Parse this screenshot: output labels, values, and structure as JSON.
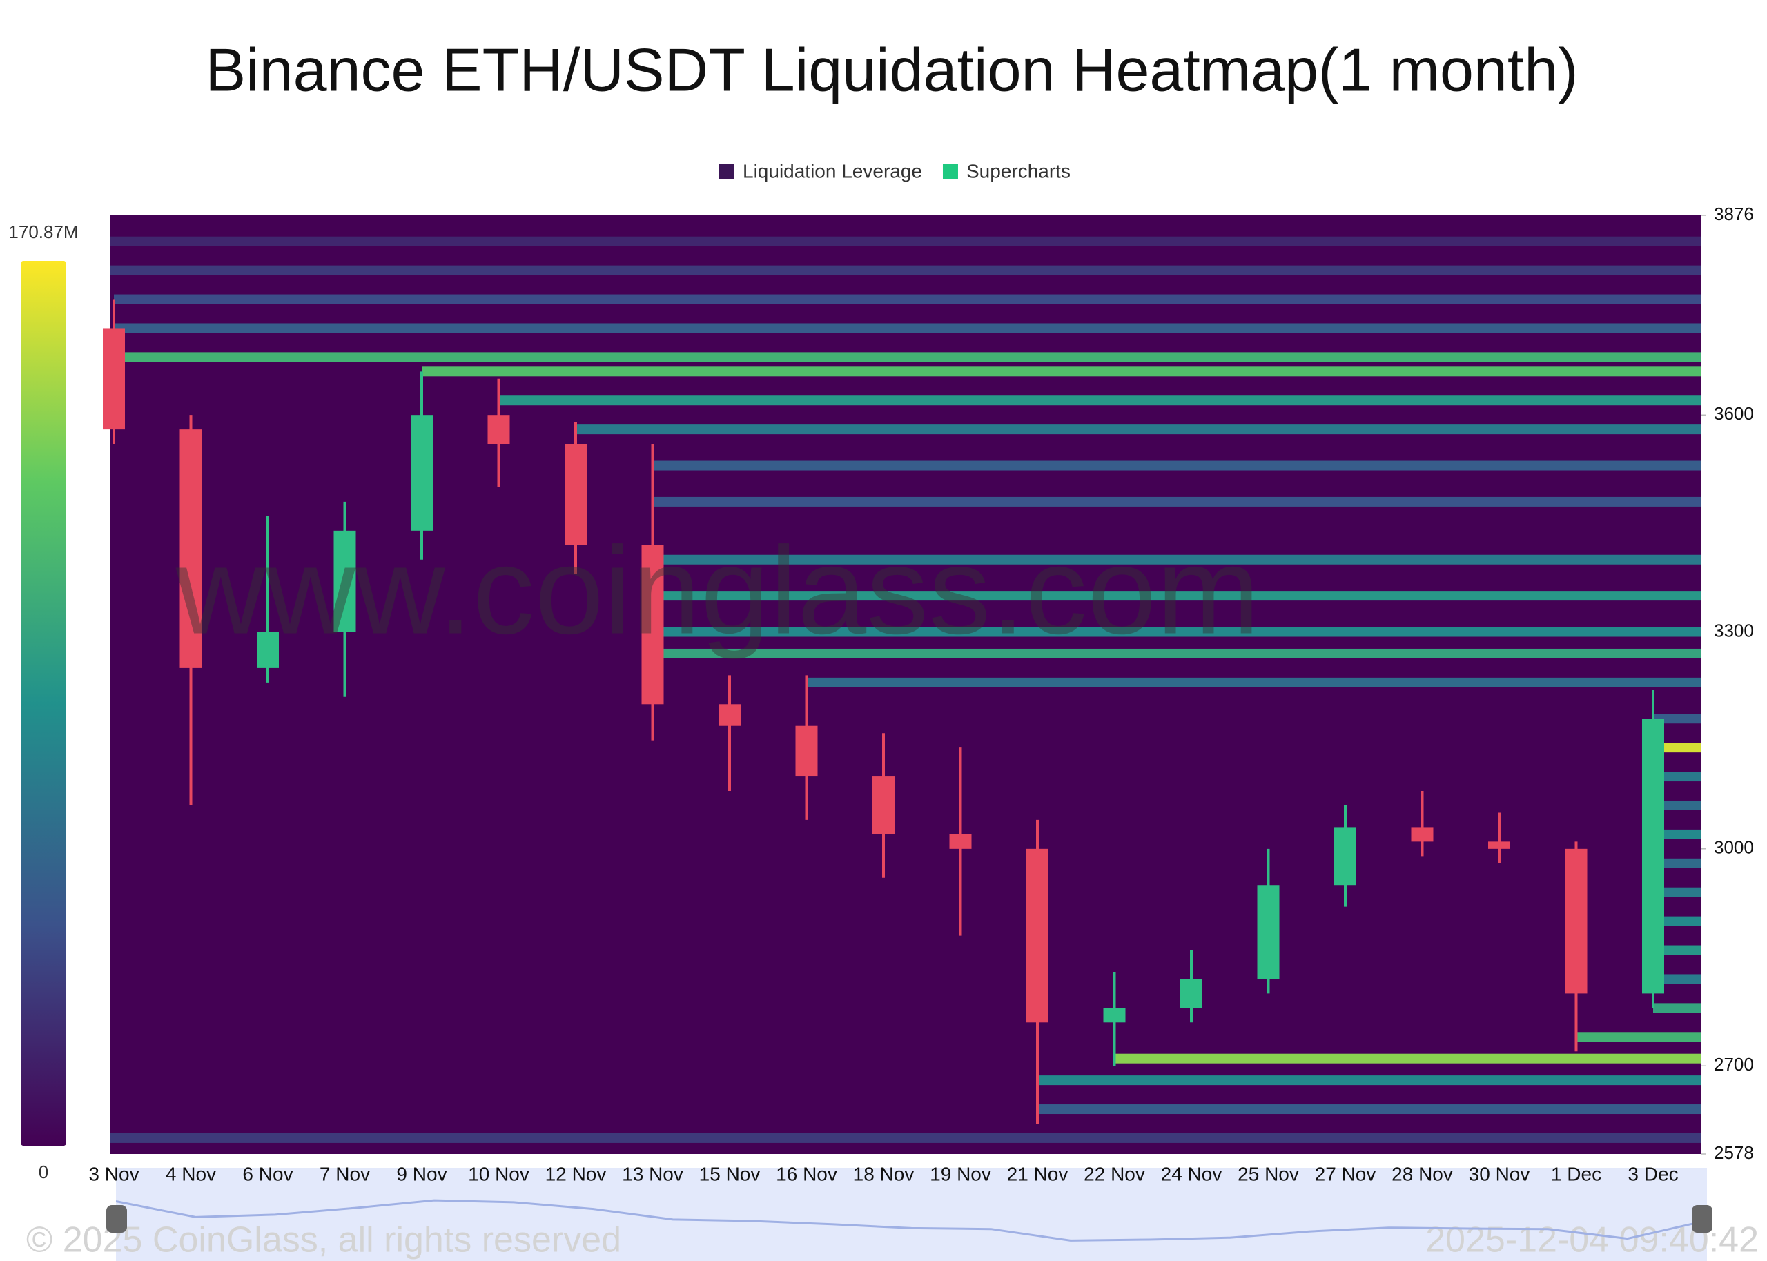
{
  "chart_data": {
    "type": "heatmap",
    "title": "Binance ETH/USDT Liquidation Heatmap(1 month)",
    "legend": [
      {
        "name": "Liquidation Leverage",
        "color": "#3b1556"
      },
      {
        "name": "Supercharts",
        "color": "#1ec980"
      }
    ],
    "watermark": "www.coinglass.com",
    "copyright": "© 2025 CoinGlass, all rights reserved",
    "timestamp": "2025-12-04 09:40:42",
    "categories": [
      "3 Nov",
      "4 Nov",
      "6 Nov",
      "7 Nov",
      "9 Nov",
      "10 Nov",
      "12 Nov",
      "13 Nov",
      "15 Nov",
      "16 Nov",
      "18 Nov",
      "19 Nov",
      "21 Nov",
      "22 Nov",
      "24 Nov",
      "25 Nov",
      "27 Nov",
      "28 Nov",
      "30 Nov",
      "1 Dec",
      "3 Dec"
    ],
    "open": [
      3720,
      3580,
      3250,
      3300,
      3440,
      3600,
      3560,
      3420,
      3200,
      3170,
      3100,
      3020,
      3000,
      2760,
      2780,
      2820,
      2950,
      3030,
      3010,
      3000,
      2800
    ],
    "high": [
      3760,
      3600,
      3460,
      3480,
      3660,
      3650,
      3590,
      3560,
      3240,
      3240,
      3160,
      3140,
      3040,
      2830,
      2860,
      3000,
      3060,
      3080,
      3050,
      3010,
      3220
    ],
    "low": [
      3560,
      3060,
      3230,
      3210,
      3400,
      3500,
      3380,
      3150,
      3080,
      3040,
      2960,
      2880,
      2620,
      2700,
      2760,
      2800,
      2920,
      2990,
      2980,
      2720,
      2780
    ],
    "close": [
      3580,
      3250,
      3300,
      3440,
      3600,
      3560,
      3420,
      3200,
      3170,
      3100,
      3020,
      3000,
      2760,
      2780,
      2820,
      2950,
      3030,
      3010,
      3000,
      2800,
      3180
    ],
    "up_color": "#2fbf86",
    "down_color": "#e8485f",
    "levels": [
      {
        "price": 3840,
        "value": 20
      },
      {
        "price": 3800,
        "value": 30
      },
      {
        "price": 3760,
        "value": 40
      },
      {
        "price": 3720,
        "value": 50
      },
      {
        "price": 3680,
        "value": 110
      },
      {
        "price": 3660,
        "value": 120
      },
      {
        "price": 3620,
        "value": 90
      },
      {
        "price": 3580,
        "value": 70
      },
      {
        "price": 3530,
        "value": 50
      },
      {
        "price": 3480,
        "value": 45
      },
      {
        "price": 3400,
        "value": 70
      },
      {
        "price": 3350,
        "value": 90
      },
      {
        "price": 3300,
        "value": 80
      },
      {
        "price": 3270,
        "value": 100
      },
      {
        "price": 3230,
        "value": 60
      },
      {
        "price": 3180,
        "value": 50
      },
      {
        "price": 3140,
        "value": 160
      },
      {
        "price": 3100,
        "value": 70
      },
      {
        "price": 3060,
        "value": 60
      },
      {
        "price": 3020,
        "value": 80
      },
      {
        "price": 2980,
        "value": 60
      },
      {
        "price": 2940,
        "value": 70
      },
      {
        "price": 2900,
        "value": 80
      },
      {
        "price": 2860,
        "value": 90
      },
      {
        "price": 2820,
        "value": 70
      },
      {
        "price": 2780,
        "value": 100
      },
      {
        "price": 2740,
        "value": 110
      },
      {
        "price": 2710,
        "value": 140
      },
      {
        "price": 2680,
        "value": 80
      },
      {
        "price": 2640,
        "value": 50
      },
      {
        "price": 2600,
        "value": 30
      }
    ],
    "colorbar_ticks": [
      {
        "value": 170.87,
        "label": "170.87M"
      },
      0
    ],
    "ylim": [
      2578,
      3876
    ],
    "yticks": [
      3876,
      3600,
      3300,
      3000,
      2700,
      2578
    ]
  }
}
